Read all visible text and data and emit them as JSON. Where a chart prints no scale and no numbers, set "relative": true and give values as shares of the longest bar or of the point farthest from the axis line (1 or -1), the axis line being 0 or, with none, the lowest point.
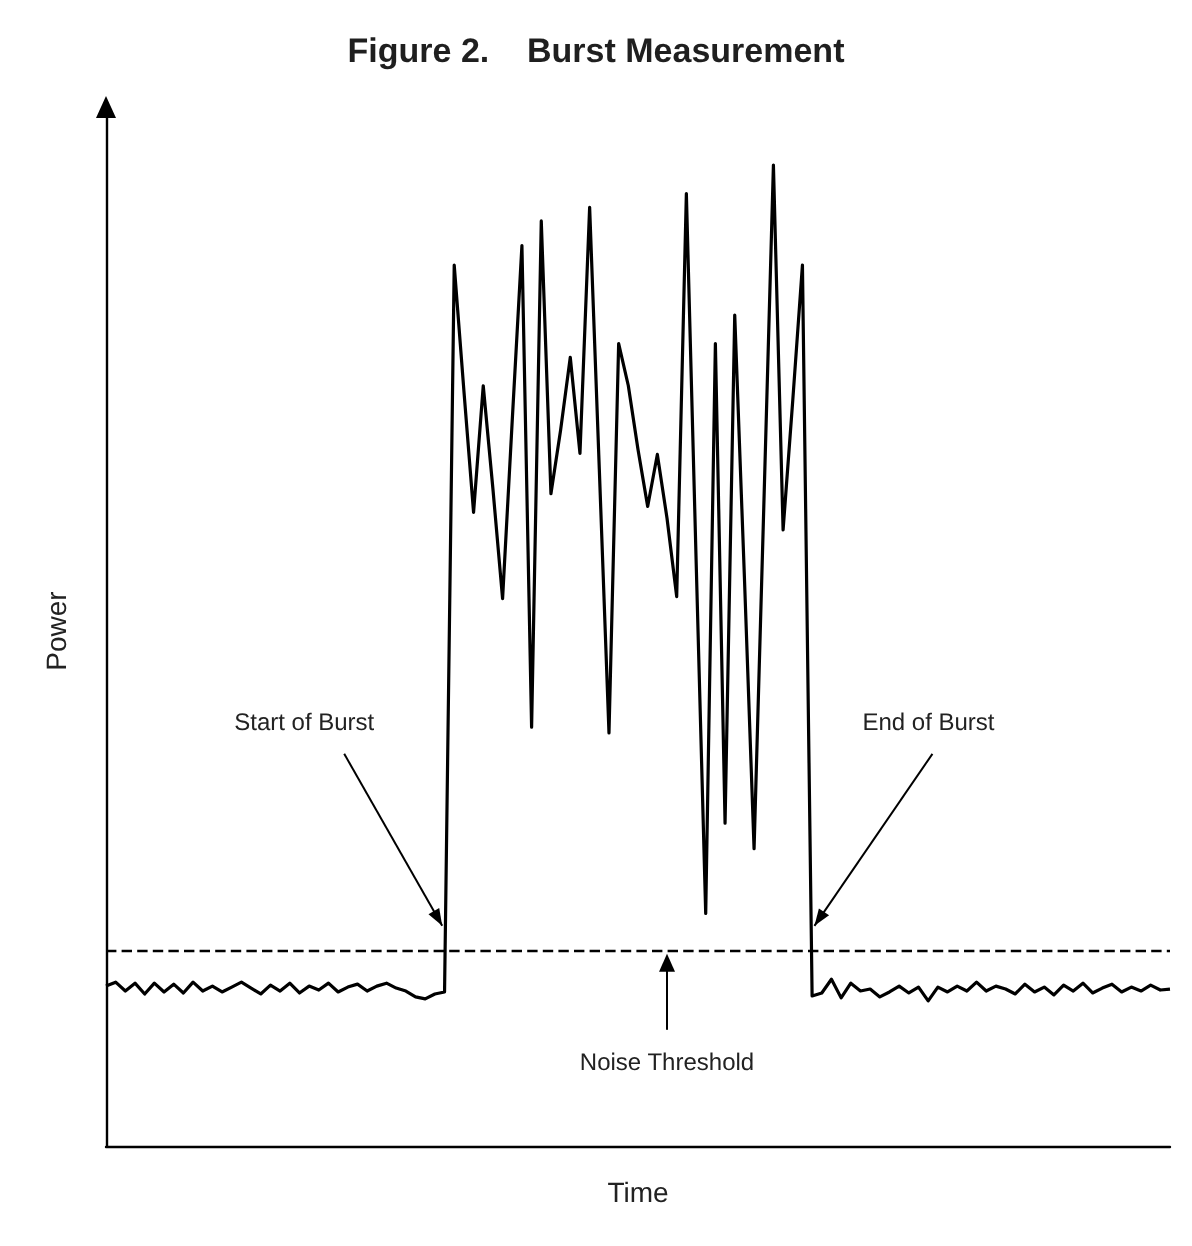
{
  "chart_data": {
    "type": "line",
    "title": "Figure 2.    Burst Measurement",
    "xlabel": "Time",
    "ylabel": "Power",
    "relative": true,
    "grid": false,
    "marker": "none",
    "categories": [
      null,
      null,
      null,
      null,
      null,
      null,
      null,
      null,
      null,
      null,
      null,
      null,
      null,
      null,
      null,
      null,
      null,
      null,
      null,
      null,
      null,
      null,
      null,
      null,
      null,
      null,
      null,
      null,
      null,
      null,
      null,
      null,
      null,
      null,
      null,
      null,
      null,
      null,
      null,
      null,
      null,
      null,
      null,
      null,
      null,
      null,
      null,
      null,
      null,
      null,
      null,
      null,
      null,
      null,
      null,
      null,
      null,
      null,
      null,
      null,
      null,
      null,
      null,
      null,
      null,
      null,
      null,
      null,
      null,
      null,
      null,
      null,
      null,
      null,
      null,
      null,
      null,
      null,
      null,
      null,
      null,
      null,
      null,
      null,
      null,
      null,
      null,
      null,
      null,
      null,
      null,
      null,
      null,
      null,
      null,
      null,
      null,
      null,
      null,
      null,
      null,
      null,
      null,
      null,
      null,
      null,
      null,
      null,
      null,
      null,
      null
    ],
    "series": [
      {
        "color": "#000000",
        "line_style": "solid",
        "values": [
          0.163,
          0.167,
          0.158,
          0.166,
          0.155,
          0.166,
          0.157,
          0.165,
          0.156,
          0.167,
          0.158,
          0.163,
          0.157,
          0.162,
          0.167,
          0.161,
          0.155,
          0.164,
          0.158,
          0.166,
          0.156,
          0.163,
          0.159,
          0.166,
          0.157,
          0.162,
          0.165,
          0.158,
          0.163,
          0.166,
          0.161,
          0.158,
          0.152,
          0.15,
          0.155,
          0.157,
          0.898,
          0.77,
          0.646,
          0.775,
          0.67,
          0.558,
          0.74,
          0.918,
          0.427,
          0.943,
          0.665,
          0.73,
          0.804,
          0.706,
          0.957,
          0.69,
          0.421,
          0.818,
          0.775,
          0.71,
          0.652,
          0.705,
          0.64,
          0.56,
          0.971,
          0.6,
          0.237,
          0.818,
          0.329,
          0.847,
          0.58,
          0.303,
          0.65,
          1,
          0.628,
          0.76,
          0.898,
          0.153,
          0.156,
          0.17,
          0.151,
          0.166,
          0.158,
          0.16,
          0.152,
          0.157,
          0.163,
          0.156,
          0.162,
          0.148,
          0.162,
          0.157,
          0.163,
          0.158,
          0.167,
          0.158,
          0.163,
          0.16,
          0.155,
          0.165,
          0.157,
          0.162,
          0.154,
          0.164,
          0.158,
          0.166,
          0.156,
          0.161,
          0.165,
          0.157,
          0.162,
          0.158,
          0.164,
          0.159,
          0.16
        ]
      }
    ],
    "ref_lines": [
      {
        "axis": "y",
        "value": 0.2,
        "label": "Noise Threshold",
        "line_style": "dashed",
        "color": "#000000"
      }
    ],
    "annotations": [
      "Start of Burst",
      "End of Burst"
    ]
  }
}
